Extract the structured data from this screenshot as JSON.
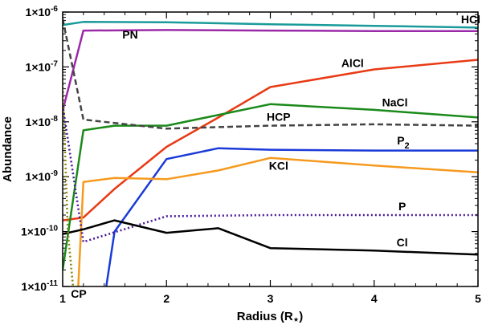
{
  "chart_data": {
    "type": "line",
    "title": "",
    "xlabel": "Radius (R",
    "xlabel_star": "⋆",
    "xlabel_close": ")",
    "ylabel": "Abundance",
    "xlim": [
      1,
      5
    ],
    "ylim_log10": [
      -11,
      -6
    ],
    "yscale": "log",
    "x_ticks": [
      {
        "value": 1,
        "label": "1"
      },
      {
        "value": 2,
        "label": "2"
      },
      {
        "value": 3,
        "label": "3"
      },
      {
        "value": 4,
        "label": "4"
      },
      {
        "value": 5,
        "label": "5"
      }
    ],
    "y_ticks": [
      {
        "exp": -11,
        "base": "1×10",
        "sup": "-11"
      },
      {
        "exp": -10,
        "base": "1×10",
        "sup": "-10"
      },
      {
        "exp": -9,
        "base": "1×10",
        "sup": "-9"
      },
      {
        "exp": -8,
        "base": "1×10",
        "sup": "-8"
      },
      {
        "exp": -7,
        "base": "1×10",
        "sup": "-7"
      },
      {
        "exp": -6,
        "base": "1×10",
        "sup": "-6"
      }
    ],
    "series": [
      {
        "name": "HCl",
        "label": "HCl",
        "color": "#1a9a9a",
        "dash": "solid",
        "x": [
          1,
          1.2,
          2,
          3,
          4,
          5
        ],
        "y": [
          5.8e-07,
          6.6e-07,
          6.5e-07,
          6e-07,
          5.6e-07,
          5.2e-07
        ],
        "label_at": [
          4.93,
          6.2e-07
        ],
        "label_anchor": "middle"
      },
      {
        "name": "PN",
        "label": "PN",
        "color": "#9a2aa8",
        "dash": "solid",
        "x": [
          1,
          1.2,
          2,
          3,
          4,
          5
        ],
        "y": [
          1.6e-08,
          4.6e-07,
          4.7e-07,
          4.6e-07,
          4.5e-07,
          4.5e-07
        ],
        "label_at": [
          1.65,
          3.3e-07
        ],
        "label_anchor": "middle"
      },
      {
        "name": "AlCl",
        "label": "AlCl",
        "color": "#e83a14",
        "dash": "solid",
        "x": [
          1,
          1.2,
          1.5,
          2,
          2.5,
          3,
          4,
          5
        ],
        "y": [
          1.6e-10,
          1.8e-10,
          6e-10,
          3.5e-09,
          1.2e-08,
          4.3e-08,
          9e-08,
          1.35e-07
        ],
        "label_at": [
          3.9,
          1e-07
        ],
        "label_anchor": "end"
      },
      {
        "name": "NaCl",
        "label": "NaCl",
        "color": "#1a8a1a",
        "dash": "solid",
        "x": [
          1,
          1.2,
          1.5,
          2,
          3,
          4,
          5
        ],
        "y": [
          2e-11,
          7e-09,
          8.5e-09,
          8.5e-09,
          2.1e-08,
          1.65e-08,
          1.2e-08
        ],
        "label_at": [
          4.2,
          1.9e-08
        ],
        "label_anchor": "middle"
      },
      {
        "name": "HCP",
        "label": "HCP",
        "color": "#444444",
        "dash": "dashed",
        "x": [
          1,
          1.2,
          2,
          2.5,
          3,
          4,
          5
        ],
        "y": [
          7.5e-07,
          1.1e-08,
          7.5e-09,
          8e-09,
          8.5e-09,
          9e-09,
          8.5e-09
        ],
        "label_at": [
          3.08,
          1.05e-08
        ],
        "label_anchor": "middle"
      },
      {
        "name": "P2",
        "label": "P",
        "sub": "2",
        "color": "#1a3ad8",
        "dash": "solid",
        "x": [
          1.42,
          1.5,
          2,
          2.5,
          3,
          4,
          5
        ],
        "y": [
          1e-11,
          1e-10,
          2.1e-09,
          3.3e-09,
          3.1e-09,
          3e-09,
          3e-09
        ],
        "label_at": [
          4.28,
          3.9e-09
        ],
        "label_anchor": "middle"
      },
      {
        "name": "KCl",
        "label": "KCl",
        "color": "#f59a1e",
        "dash": "solid",
        "x": [
          1.15,
          1.2,
          1.5,
          2,
          2.5,
          3,
          4,
          5
        ],
        "y": [
          1e-11,
          8e-10,
          9.5e-10,
          9e-10,
          1.3e-09,
          2.2e-09,
          1.6e-09,
          1.2e-09
        ],
        "label_at": [
          3.08,
          1.33e-09
        ],
        "label_anchor": "middle"
      },
      {
        "name": "P",
        "label": "P",
        "color": "#4a1a98",
        "dash": "dotted",
        "x": [
          1,
          1.2,
          2,
          3,
          4,
          5
        ],
        "y": [
          2e-08,
          6.5e-11,
          1.9e-10,
          2e-10,
          2e-10,
          2e-10
        ],
        "label_at": [
          4.27,
          2.45e-10
        ],
        "label_anchor": "middle"
      },
      {
        "name": "Cl",
        "label": "Cl",
        "color": "#000000",
        "dash": "solid",
        "x": [
          1,
          1.2,
          1.5,
          2,
          2.5,
          3,
          4,
          5
        ],
        "y": [
          9e-11,
          1.1e-10,
          1.6e-10,
          9.5e-11,
          1.15e-10,
          5e-11,
          4.5e-11,
          3.8e-11
        ],
        "label_at": [
          4.27,
          5.4e-11
        ],
        "label_anchor": "middle"
      },
      {
        "name": "CP",
        "label": "CP",
        "color": "#8a8a10",
        "dash": "dotted",
        "x": [
          1,
          1.05,
          1.1
        ],
        "y": [
          5e-08,
          1e-10,
          1e-11
        ],
        "label_at": [
          1.23,
          6.2e-12
        ],
        "label_anchor": "end"
      }
    ]
  }
}
